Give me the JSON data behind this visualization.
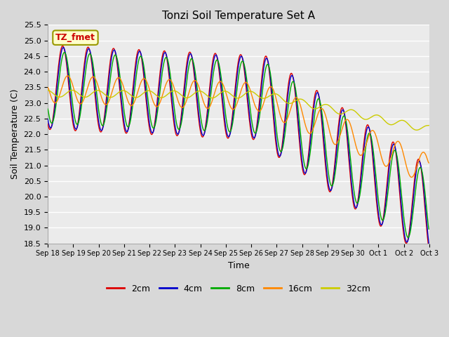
{
  "title": "Tonzi Soil Temperature Set A",
  "xlabel": "Time",
  "ylabel": "Soil Temperature (C)",
  "ylim": [
    18.5,
    25.5
  ],
  "annotation_text": "TZ_fmet",
  "annotation_color": "#cc0000",
  "annotation_bg": "#ffffcc",
  "annotation_border": "#999900",
  "colors": {
    "2cm": "#dd0000",
    "4cm": "#0000cc",
    "8cm": "#00aa00",
    "16cm": "#ff8800",
    "32cm": "#cccc00"
  },
  "legend_labels": [
    "2cm",
    "4cm",
    "8cm",
    "16cm",
    "32cm"
  ],
  "bg_color": "#d8d8d8",
  "plot_bg_color": "#ebebeb",
  "grid_color": "#ffffff",
  "x_tick_labels": [
    "Sep 18",
    "Sep 19",
    "Sep 20",
    "Sep 21",
    "Sep 22",
    "Sep 23",
    "Sep 24",
    "Sep 25",
    "Sep 26",
    "Sep 27",
    "Sep 28",
    "Sep 29",
    "Sep 30",
    "Oct 1",
    "Oct 2",
    "Oct 3"
  ],
  "figsize": [
    6.4,
    4.8
  ],
  "dpi": 100
}
